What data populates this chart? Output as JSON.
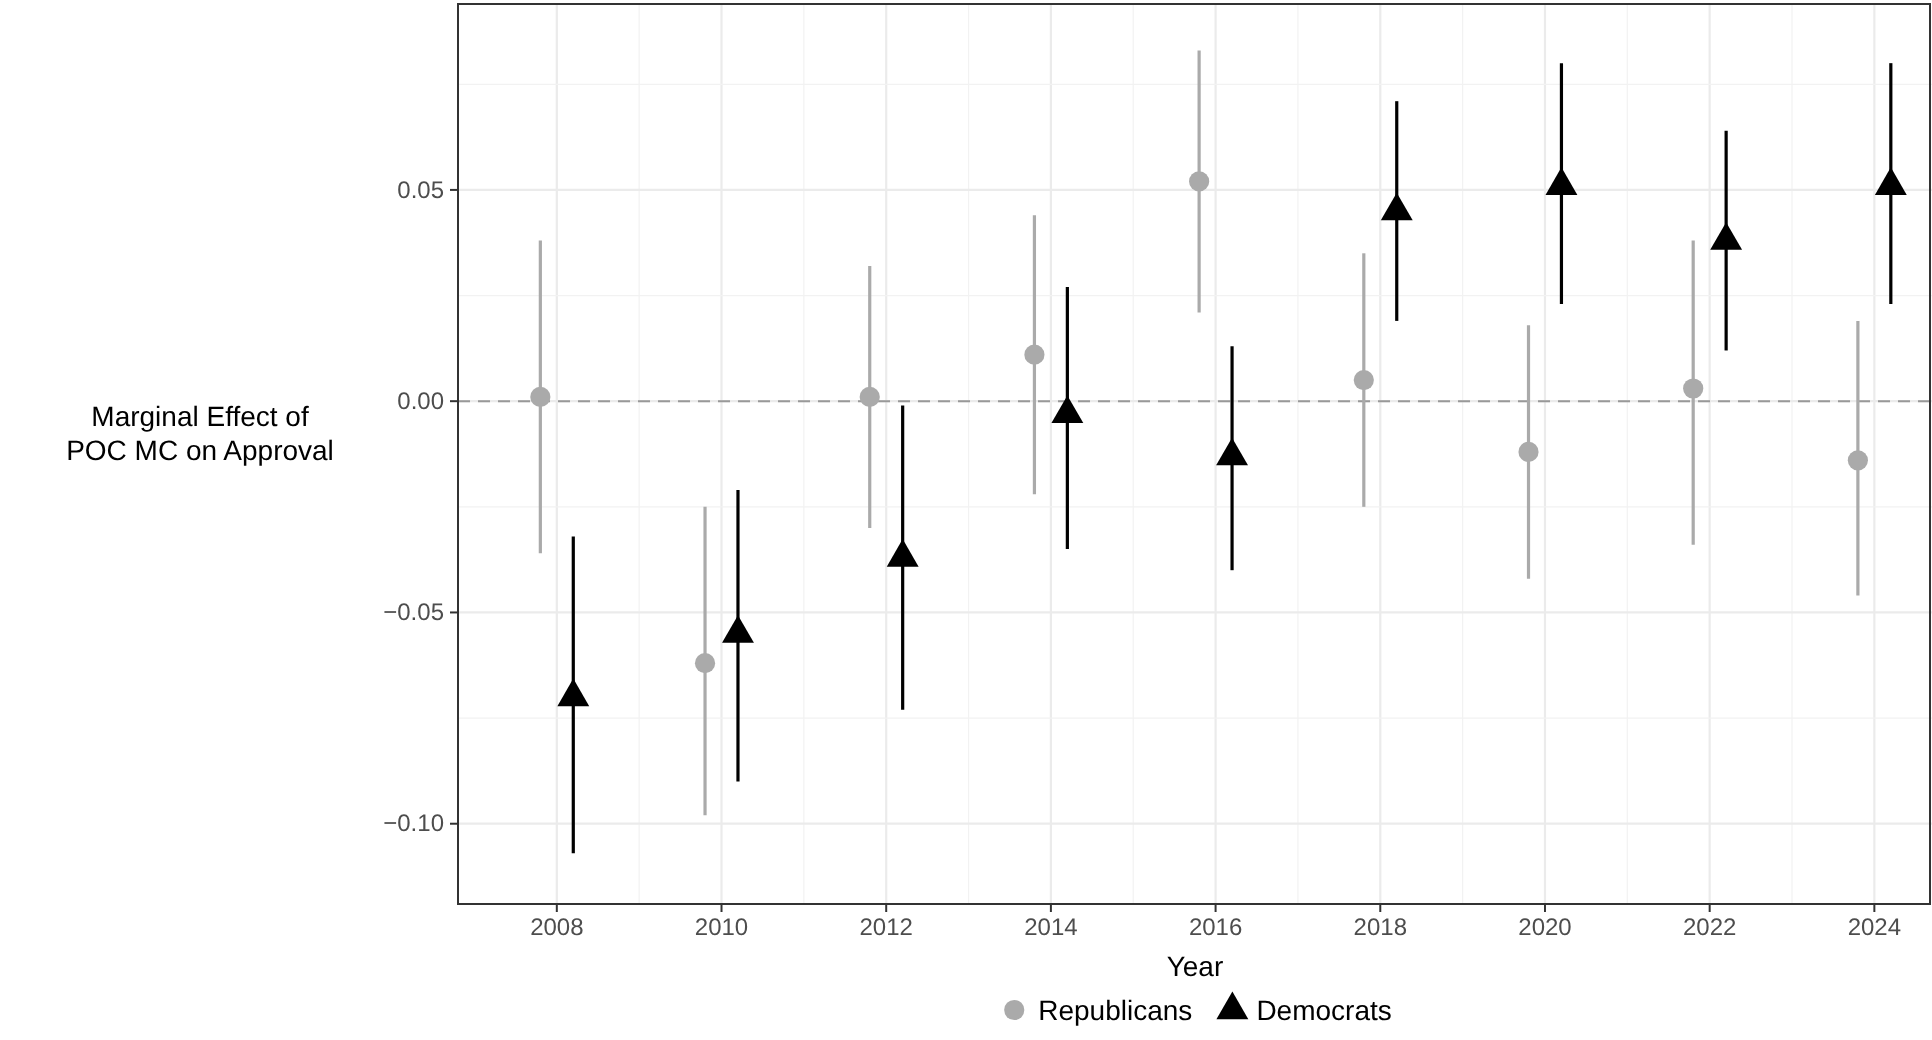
{
  "chart_data": {
    "type": "scatter",
    "xlabel": "Year",
    "ylabel": "Marginal Effect of\nPOC MC on Approval",
    "xlim": [
      2006.8,
      2024.7
    ],
    "xticks": [
      2008,
      2010,
      2012,
      2014,
      2016,
      2018,
      2020,
      2022,
      2024
    ],
    "ylim": [
      -0.119,
      0.094
    ],
    "yticks": [
      {
        "value": -0.1,
        "label": "−0.10"
      },
      {
        "value": -0.05,
        "label": "−0.05"
      },
      {
        "value": 0,
        "label": "0.00"
      },
      {
        "value": 0.05,
        "label": "0.05"
      }
    ],
    "grid": true,
    "legend": "bottom",
    "ref_lines": [
      {
        "axis": "y",
        "value": 0,
        "color": "#999999",
        "line_style": "dashed"
      }
    ],
    "series": [
      {
        "name": "Republicans",
        "color": "#aaaaaa",
        "marker": "circle",
        "x": [
          2007.8,
          2009.8,
          2011.8,
          2013.8,
          2015.8,
          2017.8,
          2019.8,
          2021.8,
          2023.8
        ],
        "values": [
          0.001,
          -0.062,
          0.001,
          0.011,
          0.052,
          0.005,
          -0.012,
          0.003,
          -0.014
        ],
        "errors": [
          [
            -0.036,
            0.038
          ],
          [
            -0.098,
            -0.025
          ],
          [
            -0.03,
            0.032
          ],
          [
            -0.022,
            0.044
          ],
          [
            0.021,
            0.083
          ],
          [
            -0.025,
            0.035
          ],
          [
            -0.042,
            0.018
          ],
          [
            -0.034,
            0.038
          ],
          [
            -0.046,
            0.019
          ]
        ]
      },
      {
        "name": "Democrats",
        "color": "#000000",
        "marker": "triangle",
        "x": [
          2008.2,
          2010.2,
          2012.2,
          2014.2,
          2016.2,
          2018.2,
          2020.2,
          2022.2,
          2024.2
        ],
        "values": [
          -0.07,
          -0.055,
          -0.037,
          -0.003,
          -0.013,
          0.045,
          0.051,
          0.038,
          0.051
        ],
        "errors": [
          [
            -0.107,
            -0.032
          ],
          [
            -0.09,
            -0.021
          ],
          [
            -0.073,
            -0.001
          ],
          [
            -0.035,
            0.027
          ],
          [
            -0.04,
            0.013
          ],
          [
            0.019,
            0.071
          ],
          [
            0.023,
            0.08
          ],
          [
            0.012,
            0.064
          ],
          [
            0.023,
            0.08
          ]
        ]
      }
    ]
  }
}
